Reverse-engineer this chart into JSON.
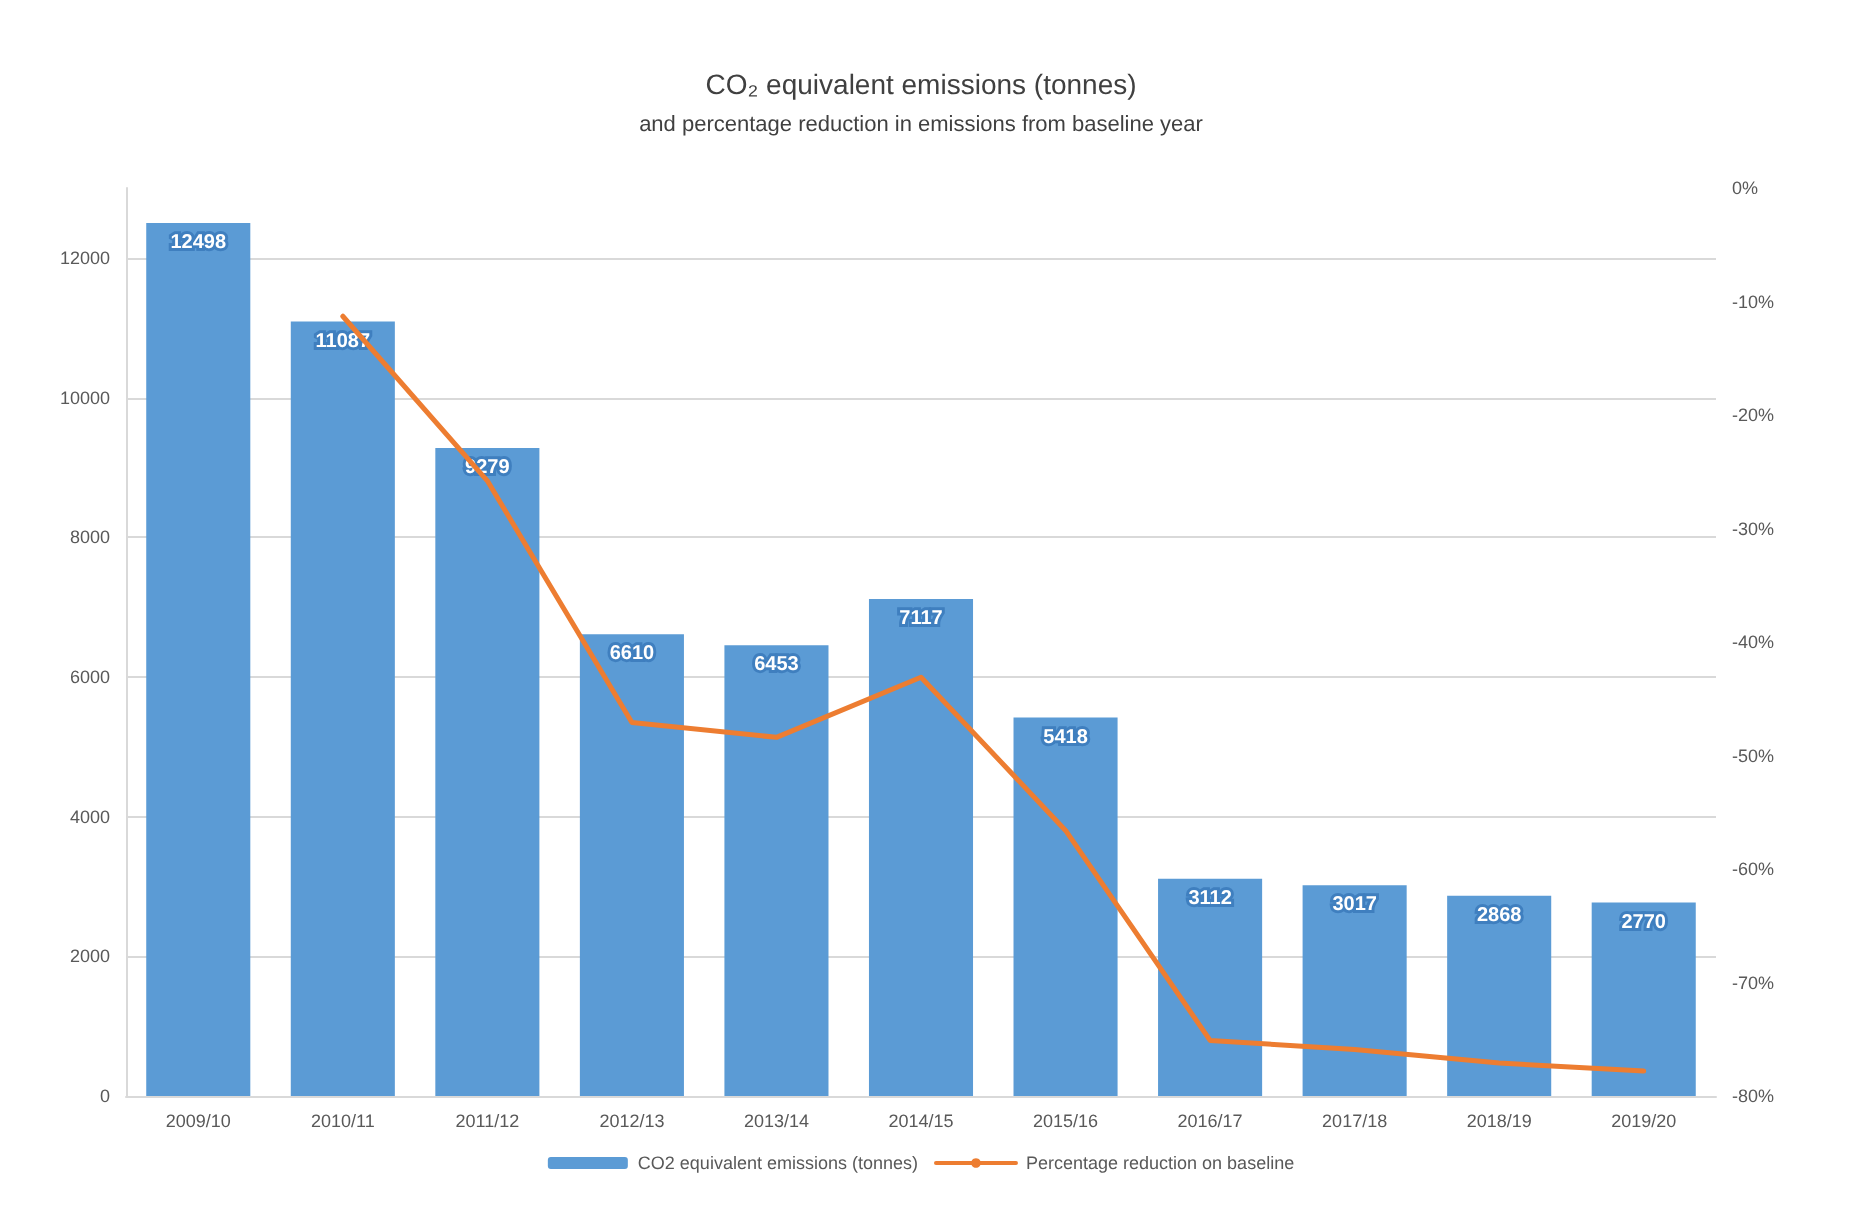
{
  "chart_data": {
    "type": "bar",
    "title": "CO₂ equivalent emissions (tonnes)",
    "subtitle": "and percentage reduction in emissions from baseline year",
    "categories": [
      "2009/10",
      "2010/11",
      "2011/12",
      "2012/13",
      "2013/14",
      "2014/15",
      "2015/16",
      "2016/17",
      "2017/18",
      "2018/19",
      "2019/20"
    ],
    "series": [
      {
        "name": "CO2 equivalent emissions (tonnes)",
        "color": "#5b9bd5",
        "values": [
          12498,
          11087,
          9279,
          6610,
          6453,
          7117,
          5418,
          3112,
          3017,
          2868,
          2770
        ],
        "value_labels": [
          "12498",
          "11087",
          "9279",
          "6610",
          "6453",
          "7117",
          "5418",
          "3112",
          "3017",
          "2868",
          "2770"
        ]
      },
      {
        "name": "Percentage reduction on baseline",
        "type": "line",
        "axis": "y2",
        "color": "#ed7d31",
        "values": [
          null,
          -11.3,
          -25.8,
          -47.1,
          -48.4,
          -43.1,
          -56.6,
          -75.1,
          -75.9,
          -77.1,
          -77.8
        ]
      }
    ],
    "ylim": [
      0,
      13000
    ],
    "yticks": [
      0,
      2000,
      4000,
      6000,
      8000,
      10000,
      12000
    ],
    "y2lim": [
      -80,
      0
    ],
    "y2ticks": [
      {
        "value": -80,
        "label": "-80%"
      },
      {
        "value": -70,
        "label": "-70%"
      },
      {
        "value": -60,
        "label": "-60%"
      },
      {
        "value": -50,
        "label": "-50%"
      },
      {
        "value": -40,
        "label": "-40%"
      },
      {
        "value": -30,
        "label": "-30%"
      },
      {
        "value": -20,
        "label": "-20%"
      },
      {
        "value": -10,
        "label": "-10%"
      },
      {
        "value": 0,
        "label": "0%"
      }
    ],
    "grid": "y",
    "legend": "bottom",
    "marker": "none",
    "line_style": "solid"
  }
}
